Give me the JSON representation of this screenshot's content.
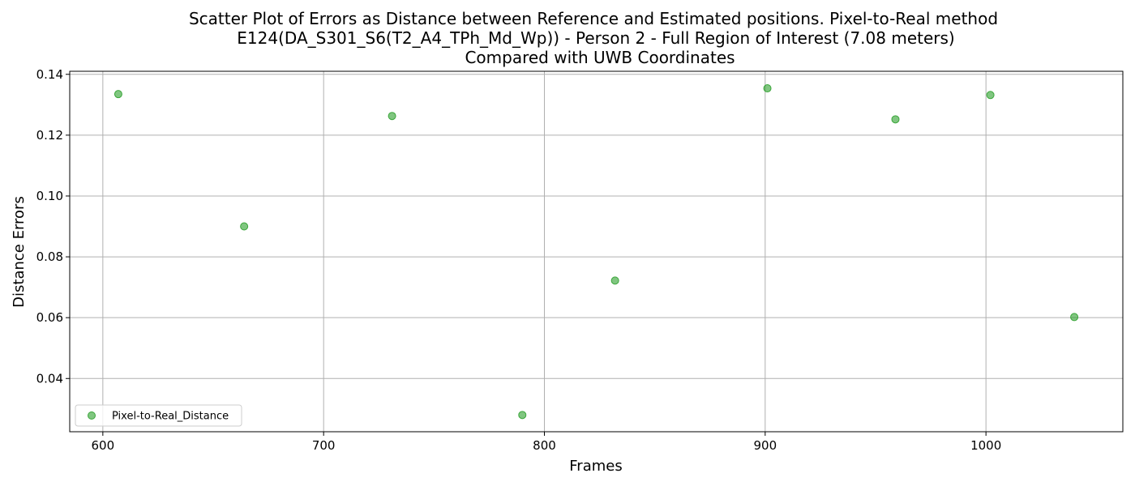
{
  "chart_data": {
    "type": "scatter",
    "title_lines": [
      "Scatter Plot of Errors as Distance between Reference and Estimated positions. Pixel-to-Real method",
      "E124(DA_S301_S6(T2_A4_TPh_Md_Wp)) - Person 2 - Full Region of Interest (7.08 meters)",
      "Compared with UWB Coordinates"
    ],
    "xlabel": "Frames",
    "ylabel": "Distance Errors",
    "xlim": [
      585,
      1062
    ],
    "ylim": [
      0.0225,
      0.141
    ],
    "x_ticks": [
      600,
      700,
      800,
      900,
      1000
    ],
    "y_ticks": [
      0.04,
      0.06,
      0.08,
      0.1,
      0.12,
      0.14
    ],
    "x_tick_labels": [
      "600",
      "700",
      "800",
      "900",
      "1000"
    ],
    "y_tick_labels": [
      "0.04",
      "0.06",
      "0.08",
      "0.10",
      "0.12",
      "0.14"
    ],
    "grid": true,
    "legend_position": "lower-left",
    "series": [
      {
        "name": "Pixel-to-Real_Distance",
        "color": "#2ca02c",
        "points": [
          {
            "x": 607,
            "y": 0.1335
          },
          {
            "x": 664,
            "y": 0.09
          },
          {
            "x": 731,
            "y": 0.1263
          },
          {
            "x": 790,
            "y": 0.028
          },
          {
            "x": 832,
            "y": 0.0722
          },
          {
            "x": 901,
            "y": 0.1354
          },
          {
            "x": 959,
            "y": 0.1252
          },
          {
            "x": 1002,
            "y": 0.1332
          },
          {
            "x": 1040,
            "y": 0.0602
          }
        ]
      }
    ]
  }
}
